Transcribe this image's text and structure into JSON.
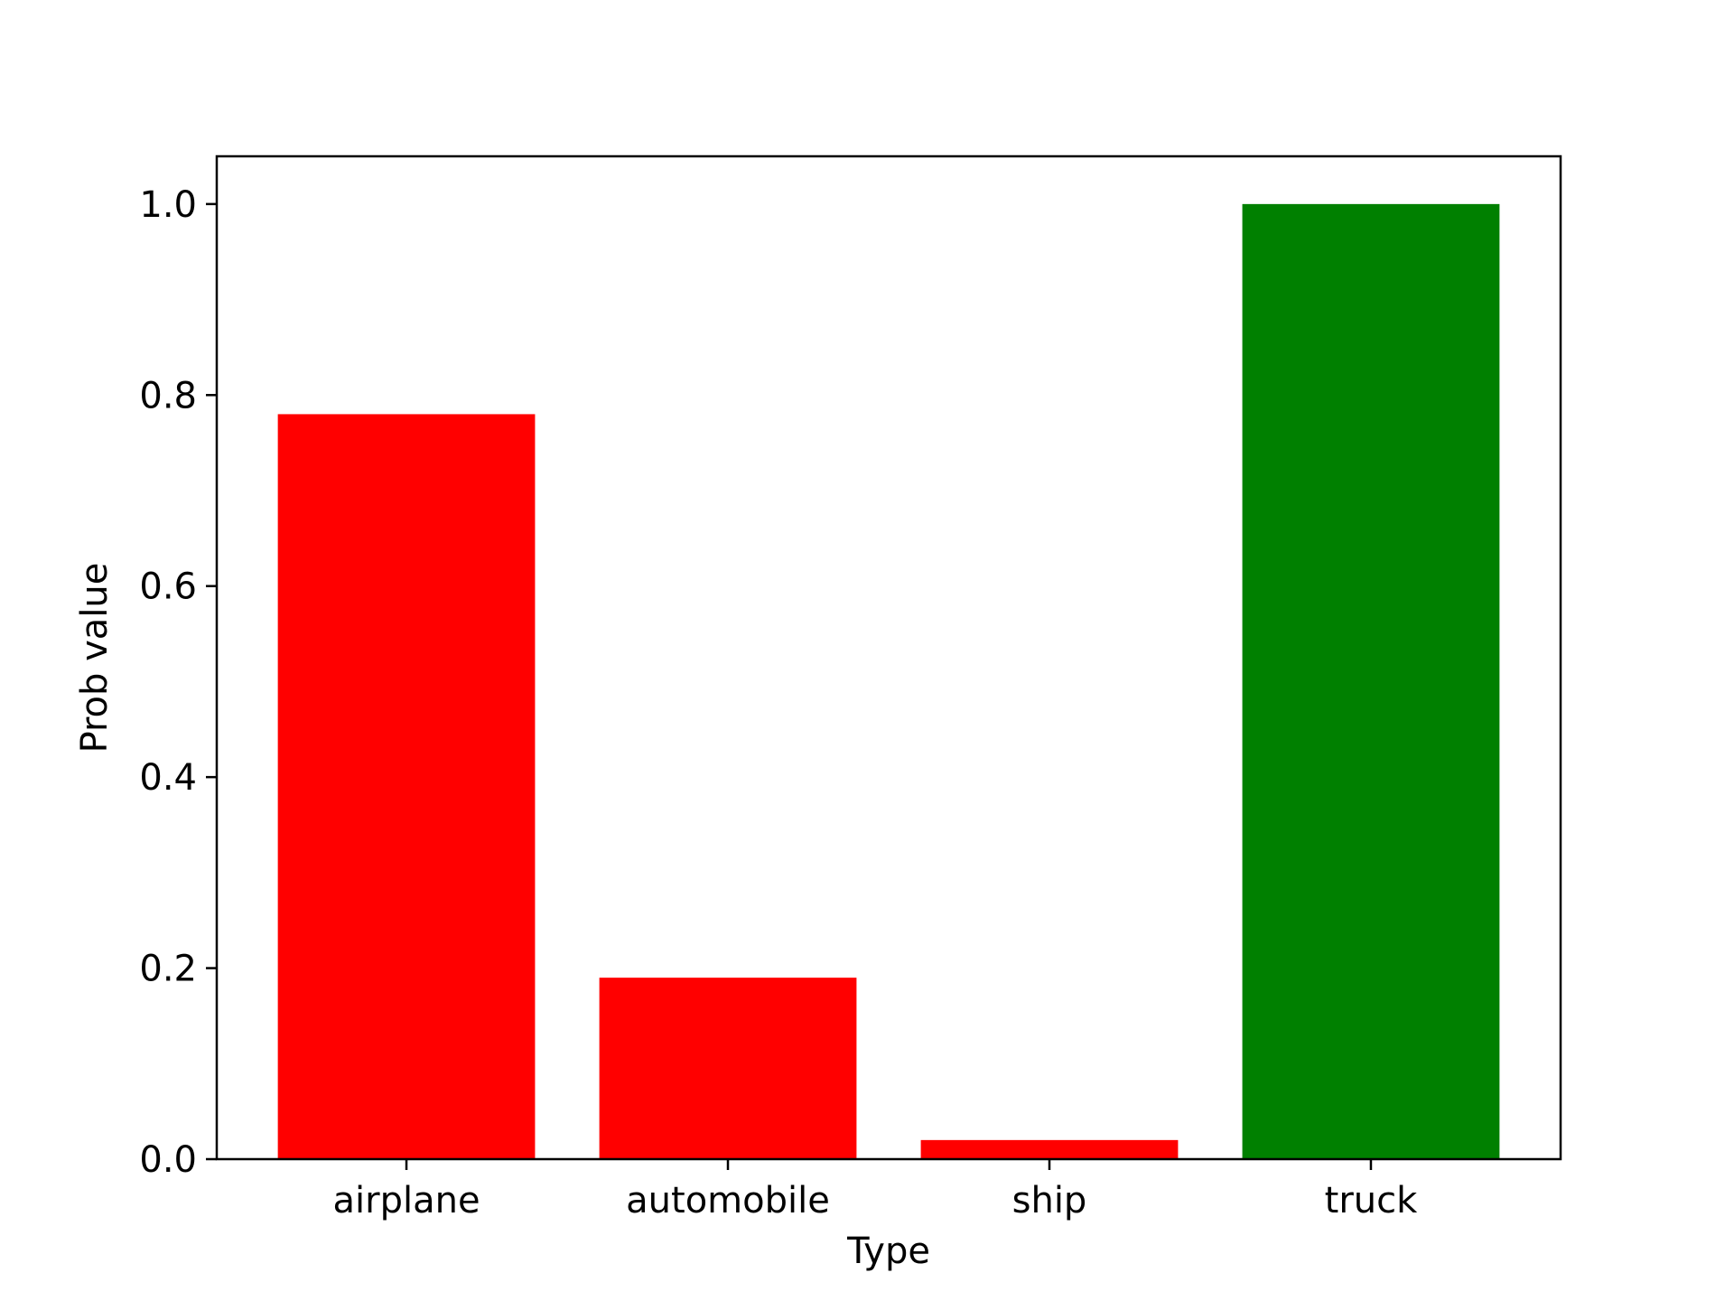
{
  "chart_data": {
    "type": "bar",
    "categories": [
      "airplane",
      "automobile",
      "ship",
      "truck"
    ],
    "values": [
      0.78,
      0.19,
      0.02,
      1.0
    ],
    "bar_colors": [
      "#ff0000",
      "#ff0000",
      "#ff0000",
      "#008000"
    ],
    "xlabel": "Type",
    "ylabel": "Prob value",
    "ylim": [
      0,
      1.05
    ],
    "yticks": [
      0.0,
      0.2,
      0.4,
      0.6,
      0.8,
      1.0
    ],
    "ytick_labels": [
      "0.0",
      "0.2",
      "0.4",
      "0.6",
      "0.8",
      "1.0"
    ],
    "grid": false,
    "legend": "none"
  }
}
